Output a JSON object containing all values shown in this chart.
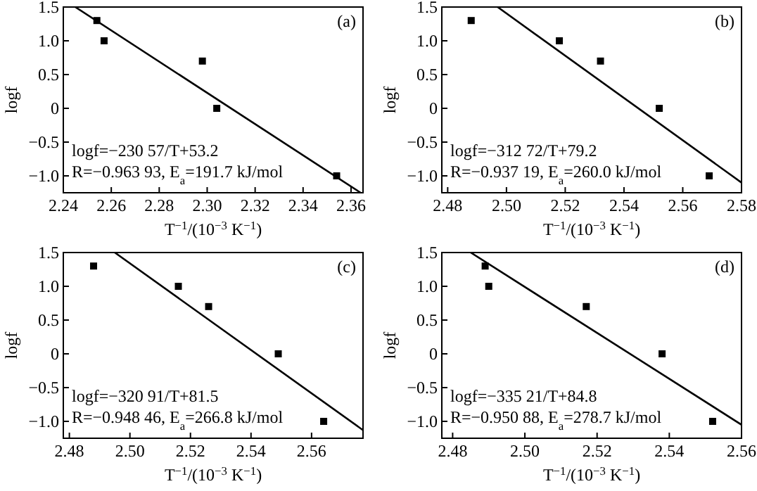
{
  "chart_data": [
    {
      "type": "scatter",
      "xlabel": "T$^{−1}$/(10$^{−3}$ K$^{−1}$)",
      "ylabel": "logf",
      "marker": "square",
      "annotations": [
        "(a)",
        "logf=−230 57/T+53.2",
        "R=−0.963 93, E$_{a}$=191.7 kJ/mol"
      ],
      "xlim": [
        2.24,
        2.365
      ],
      "ylim": [
        -1.25,
        1.5
      ],
      "xticks": [
        {
          "value": 2.24,
          "label": "2.24"
        },
        {
          "value": 2.26,
          "label": "2.26"
        },
        {
          "value": 2.28,
          "label": "2.28"
        },
        {
          "value": 2.3,
          "label": "2.30"
        },
        {
          "value": 2.32,
          "label": "2.32"
        },
        {
          "value": 2.34,
          "label": "2.34"
        },
        {
          "value": 2.36,
          "label": "2.36"
        }
      ],
      "yticks": [
        {
          "value": -1,
          "label": "−1.0"
        },
        {
          "value": -0.5,
          "label": "−0.5"
        },
        0,
        0.5,
        {
          "value": 1,
          "label": "1.0"
        },
        1.5
      ],
      "series": [
        {
          "color": "#000000",
          "x": [
            2.254,
            2.257,
            2.298,
            2.304,
            2.354
          ],
          "values": [
            1.3,
            1.0,
            0.7,
            0,
            -1.0
          ]
        },
        {
          "type": "line",
          "color": "#000000",
          "marker": "none",
          "x": [
            2.245,
            2.364
          ],
          "values": [
            1.5,
            -1.25
          ]
        }
      ]
    },
    {
      "type": "scatter",
      "xlabel": "T$^{−1}$/(10$^{−3}$ K$^{−1}$)",
      "ylabel": "logf",
      "marker": "square",
      "annotations": [
        "(b)",
        "logf=−312 72/T+79.2",
        "R=−0.937 19, E$_{a}$=260.0 kJ/mol"
      ],
      "xlim": [
        2.478,
        2.58
      ],
      "ylim": [
        -1.25,
        1.5
      ],
      "xticks": [
        {
          "value": 2.48,
          "label": "2.48"
        },
        {
          "value": 2.5,
          "label": "2.50"
        },
        {
          "value": 2.52,
          "label": "2.52"
        },
        {
          "value": 2.54,
          "label": "2.54"
        },
        {
          "value": 2.56,
          "label": "2.56"
        },
        {
          "value": 2.58,
          "label": "2.58"
        }
      ],
      "yticks": [
        {
          "value": -1,
          "label": "−1.0"
        },
        {
          "value": -0.5,
          "label": "−0.5"
        },
        0,
        0.5,
        {
          "value": 1,
          "label": "1.0"
        },
        1.5
      ],
      "series": [
        {
          "color": "#000000",
          "x": [
            2.488,
            2.518,
            2.532,
            2.552,
            2.569
          ],
          "values": [
            1.3,
            1.0,
            0.7,
            0,
            -1.0
          ]
        },
        {
          "type": "line",
          "color": "#000000",
          "marker": "none",
          "x": [
            2.497,
            2.58
          ],
          "values": [
            1.5,
            -1.1
          ]
        }
      ]
    },
    {
      "type": "scatter",
      "xlabel": "T$^{−1}$/(10$^{−3}$ K$^{−1}$)",
      "ylabel": "logf",
      "marker": "square",
      "annotations": [
        "(c)",
        "logf=−320 91/T+81.5",
        "R=−0.948 46, E$_{a}$=266.8 kJ/mol"
      ],
      "xlim": [
        2.478,
        2.577
      ],
      "ylim": [
        -1.25,
        1.5
      ],
      "xticks": [
        {
          "value": 2.48,
          "label": "2.48"
        },
        {
          "value": 2.5,
          "label": "2.50"
        },
        {
          "value": 2.52,
          "label": "2.52"
        },
        {
          "value": 2.54,
          "label": "2.54"
        },
        {
          "value": 2.56,
          "label": "2.56"
        }
      ],
      "yticks": [
        {
          "value": -1,
          "label": "−1.0"
        },
        {
          "value": -0.5,
          "label": "−0.5"
        },
        0,
        0.5,
        {
          "value": 1,
          "label": "1.0"
        },
        1.5
      ],
      "series": [
        {
          "color": "#000000",
          "x": [
            2.488,
            2.516,
            2.526,
            2.549,
            2.564
          ],
          "values": [
            1.3,
            1.0,
            0.7,
            0,
            -1.0
          ]
        },
        {
          "type": "line",
          "color": "#000000",
          "marker": "none",
          "x": [
            2.495,
            2.577
          ],
          "values": [
            1.5,
            -1.13
          ]
        }
      ]
    },
    {
      "type": "scatter",
      "xlabel": "T$^{−1}$/(10$^{−3}$ K$^{−1}$)",
      "ylabel": "logf",
      "marker": "square",
      "annotations": [
        "(d)",
        "logf=−335 21/T+84.8",
        "R=−0.950 88, E$_{a}$=278.7 kJ/mol"
      ],
      "xlim": [
        2.477,
        2.56
      ],
      "ylim": [
        -1.25,
        1.5
      ],
      "xticks": [
        {
          "value": 2.48,
          "label": "2.48"
        },
        {
          "value": 2.5,
          "label": "2.50"
        },
        {
          "value": 2.52,
          "label": "2.52"
        },
        {
          "value": 2.54,
          "label": "2.54"
        },
        {
          "value": 2.56,
          "label": "2.56"
        }
      ],
      "yticks": [
        {
          "value": -1,
          "label": "−1.0"
        },
        {
          "value": -0.5,
          "label": "−0.5"
        },
        0,
        0.5,
        {
          "value": 1,
          "label": "1.0"
        },
        1.5
      ],
      "series": [
        {
          "color": "#000000",
          "x": [
            2.489,
            2.49,
            2.517,
            2.538,
            2.552
          ],
          "values": [
            1.3,
            1.0,
            0.7,
            0,
            -1.0
          ]
        },
        {
          "type": "line",
          "color": "#000000",
          "marker": "none",
          "x": [
            2.485,
            2.56
          ],
          "values": [
            1.5,
            -1.05
          ]
        }
      ]
    }
  ]
}
